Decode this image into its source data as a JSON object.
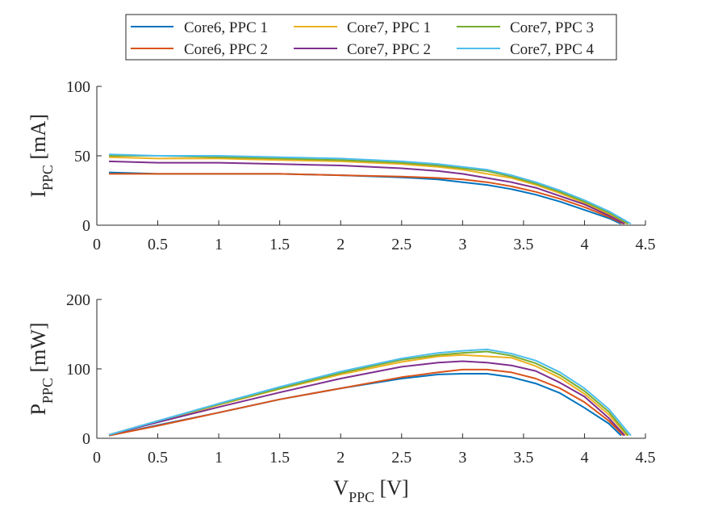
{
  "legend": {
    "items": [
      {
        "label": "Core6, PPC 1",
        "color": "#0072BD"
      },
      {
        "label": "Core6, PPC 2",
        "color": "#D95319"
      },
      {
        "label": "Core7, PPC 1",
        "color": "#EDB120"
      },
      {
        "label": "Core7, PPC 2",
        "color": "#7E2F8E"
      },
      {
        "label": "Core7, PPC 3",
        "color": "#77AC30"
      },
      {
        "label": "Core7, PPC 4",
        "color": "#4DBEEE"
      }
    ]
  },
  "chart_data": [
    {
      "type": "line",
      "ylabel": {
        "main": "I",
        "sub": "PPC",
        "unit": " [mA]"
      },
      "xlim": [
        0,
        4.5
      ],
      "ylim": [
        0,
        100
      ],
      "x_ticks": [
        "0",
        "0.5",
        "1",
        "1.5",
        "2",
        "2.5",
        "3",
        "3.5",
        "4",
        "4.5"
      ],
      "y_ticks": [
        "0",
        "50",
        "100"
      ],
      "x_tick_values": [
        0,
        0.5,
        1,
        1.5,
        2,
        2.5,
        3,
        3.5,
        4,
        4.5
      ],
      "y_tick_values": [
        0,
        50,
        100
      ],
      "grid": false,
      "legend": "top-center",
      "series": [
        {
          "name": "Core6, PPC 1",
          "color": "#0072BD",
          "x": [
            0.1,
            0.5,
            1.0,
            1.5,
            2.0,
            2.5,
            2.8,
            3.0,
            3.2,
            3.4,
            3.6,
            3.8,
            4.0,
            4.2,
            4.3
          ],
          "y": [
            38,
            37,
            37,
            37,
            36,
            34.5,
            33,
            31,
            29,
            26,
            22,
            17,
            11,
            5,
            1
          ]
        },
        {
          "name": "Core6, PPC 2",
          "color": "#D95319",
          "x": [
            0.1,
            0.5,
            1.0,
            1.5,
            2.0,
            2.5,
            2.8,
            3.0,
            3.2,
            3.4,
            3.6,
            3.8,
            4.0,
            4.2,
            4.32
          ],
          "y": [
            37,
            37,
            37,
            37,
            36,
            35,
            34,
            33,
            31,
            28,
            24,
            19,
            13,
            6,
            1
          ]
        },
        {
          "name": "Core7, PPC 1",
          "color": "#EDB120",
          "x": [
            0.1,
            0.5,
            1.0,
            1.5,
            2.0,
            2.5,
            2.8,
            3.0,
            3.2,
            3.4,
            3.6,
            3.8,
            4.0,
            4.2,
            4.35
          ],
          "y": [
            49,
            48,
            48,
            47,
            46,
            44,
            42,
            40,
            37,
            34,
            29,
            23,
            16,
            8,
            1
          ]
        },
        {
          "name": "Core7, PPC 2",
          "color": "#7E2F8E",
          "x": [
            0.1,
            0.5,
            1.0,
            1.5,
            2.0,
            2.5,
            2.8,
            3.0,
            3.2,
            3.4,
            3.6,
            3.8,
            4.0,
            4.2,
            4.33
          ],
          "y": [
            46,
            45,
            45,
            44,
            43,
            41,
            39,
            37,
            34,
            31,
            27,
            21,
            15,
            7,
            1
          ]
        },
        {
          "name": "Core7, PPC 3",
          "color": "#77AC30",
          "x": [
            0.1,
            0.5,
            1.0,
            1.5,
            2.0,
            2.5,
            2.8,
            3.0,
            3.2,
            3.4,
            3.6,
            3.8,
            4.0,
            4.2,
            4.36
          ],
          "y": [
            50,
            50,
            49,
            48,
            47,
            45,
            43,
            41,
            39,
            35,
            30,
            24,
            17,
            9,
            1
          ]
        },
        {
          "name": "Core7, PPC 4",
          "color": "#4DBEEE",
          "x": [
            0.1,
            0.5,
            1.0,
            1.5,
            2.0,
            2.5,
            2.8,
            3.0,
            3.2,
            3.4,
            3.6,
            3.8,
            4.0,
            4.2,
            4.38
          ],
          "y": [
            51,
            50,
            50,
            49,
            48,
            46,
            44,
            42,
            40,
            36,
            31,
            25,
            18,
            10,
            1
          ]
        }
      ]
    },
    {
      "type": "line",
      "ylabel": {
        "main": "P",
        "sub": "PPC",
        "unit": " [mW]"
      },
      "xlabel": {
        "main": "V",
        "sub": "PPC",
        "unit": " [V]"
      },
      "xlim": [
        0,
        4.5
      ],
      "ylim": [
        0,
        200
      ],
      "x_ticks": [
        "0",
        "0.5",
        "1",
        "1.5",
        "2",
        "2.5",
        "3",
        "3.5",
        "4",
        "4.5"
      ],
      "y_ticks": [
        "0",
        "100",
        "200"
      ],
      "x_tick_values": [
        0,
        0.5,
        1,
        1.5,
        2,
        2.5,
        3,
        3.5,
        4,
        4.5
      ],
      "y_tick_values": [
        0,
        100,
        200
      ],
      "grid": false,
      "series": [
        {
          "name": "Core6, PPC 1",
          "color": "#0072BD",
          "x": [
            0.1,
            0.5,
            1.0,
            1.5,
            2.0,
            2.5,
            2.8,
            3.0,
            3.2,
            3.4,
            3.6,
            3.8,
            4.0,
            4.2,
            4.3
          ],
          "y": [
            4,
            19,
            37,
            56,
            72,
            86,
            92,
            93,
            93,
            88,
            79,
            65,
            44,
            21,
            4
          ]
        },
        {
          "name": "Core6, PPC 2",
          "color": "#D95319",
          "x": [
            0.1,
            0.5,
            1.0,
            1.5,
            2.0,
            2.5,
            2.8,
            3.0,
            3.2,
            3.4,
            3.6,
            3.8,
            4.0,
            4.2,
            4.32
          ],
          "y": [
            4,
            18,
            37,
            56,
            72,
            88,
            95,
            99,
            99,
            95,
            86,
            72,
            52,
            25,
            4
          ]
        },
        {
          "name": "Core7, PPC 1",
          "color": "#EDB120",
          "x": [
            0.1,
            0.5,
            1.0,
            1.5,
            2.0,
            2.5,
            2.8,
            3.0,
            3.2,
            3.4,
            3.6,
            3.8,
            4.0,
            4.2,
            4.35
          ],
          "y": [
            5,
            24,
            48,
            71,
            92,
            110,
            118,
            120,
            118,
            116,
            104,
            87,
            64,
            34,
            4
          ]
        },
        {
          "name": "Core7, PPC 2",
          "color": "#7E2F8E",
          "x": [
            0.1,
            0.5,
            1.0,
            1.5,
            2.0,
            2.5,
            2.8,
            3.0,
            3.2,
            3.4,
            3.6,
            3.8,
            4.0,
            4.2,
            4.33
          ],
          "y": [
            5,
            23,
            45,
            66,
            86,
            103,
            109,
            111,
            109,
            105,
            97,
            80,
            60,
            29,
            4
          ]
        },
        {
          "name": "Core7, PPC 3",
          "color": "#77AC30",
          "x": [
            0.1,
            0.5,
            1.0,
            1.5,
            2.0,
            2.5,
            2.8,
            3.0,
            3.2,
            3.4,
            3.6,
            3.8,
            4.0,
            4.2,
            4.36
          ],
          "y": [
            5,
            25,
            49,
            72,
            94,
            113,
            120,
            123,
            125,
            119,
            108,
            91,
            68,
            38,
            4
          ]
        },
        {
          "name": "Core7, PPC 4",
          "color": "#4DBEEE",
          "x": [
            0.1,
            0.5,
            1.0,
            1.5,
            2.0,
            2.5,
            2.8,
            3.0,
            3.2,
            3.4,
            3.6,
            3.8,
            4.0,
            4.2,
            4.38
          ],
          "y": [
            5,
            25,
            50,
            74,
            96,
            115,
            123,
            126,
            128,
            122,
            112,
            95,
            72,
            42,
            4
          ]
        }
      ]
    }
  ]
}
